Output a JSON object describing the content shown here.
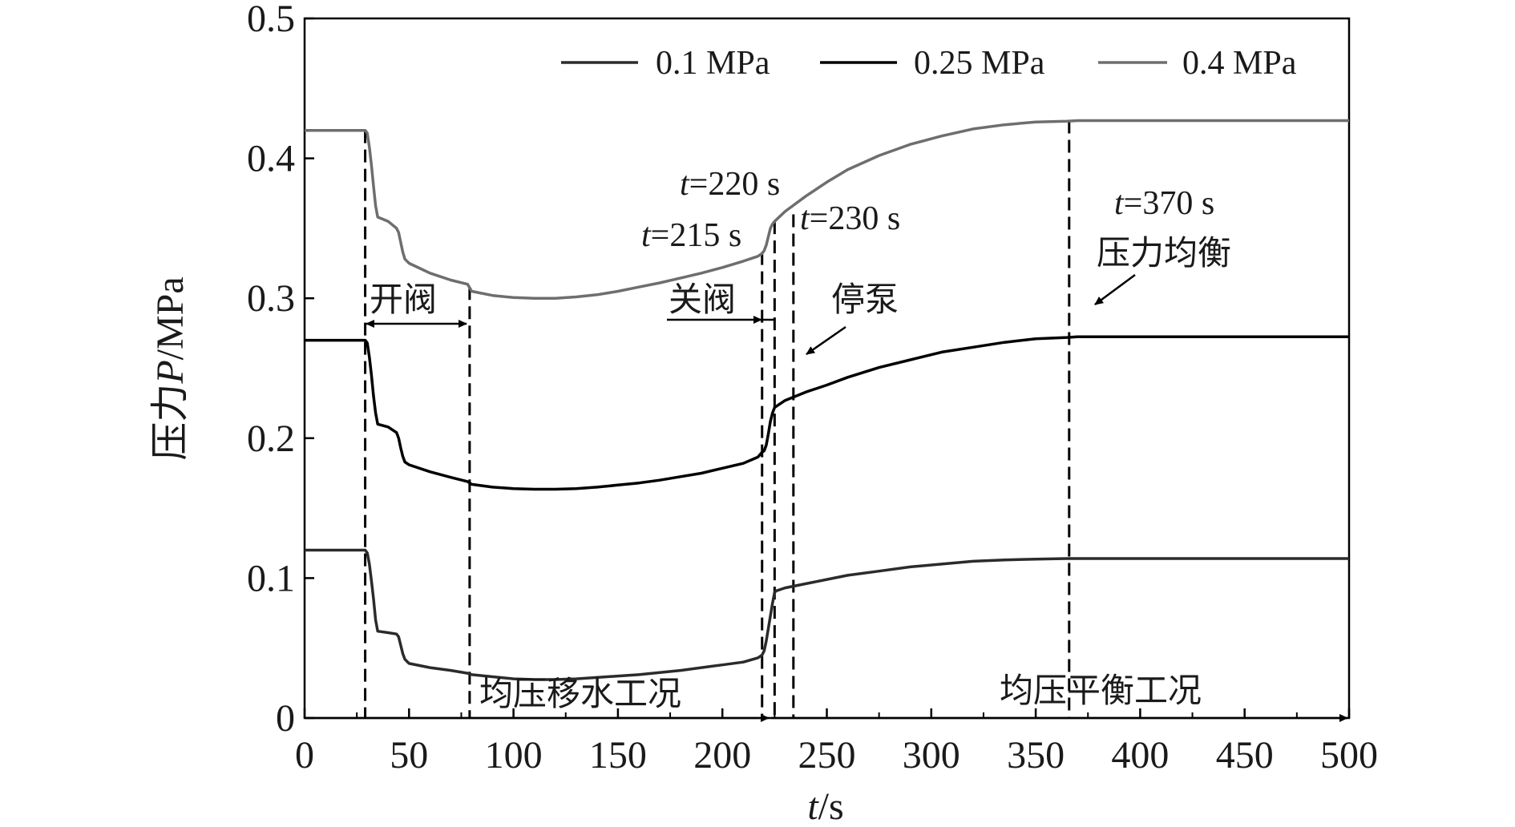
{
  "chart_data": {
    "type": "line",
    "title": "",
    "xlabel_italic": "t",
    "xlabel_unit": "/s",
    "ylabel_prefix": "压力",
    "ylabel_italic": "P",
    "ylabel_unit": "/MPa",
    "xlim": [
      0,
      500
    ],
    "ylim": [
      0,
      0.5
    ],
    "xticks": [
      "0",
      "50",
      "100",
      "150",
      "200",
      "250",
      "300",
      "350",
      "400",
      "450",
      "500"
    ],
    "yticks": [
      "0",
      "0.1",
      "0.2",
      "0.3",
      "0.4",
      "0.5"
    ],
    "grid": false,
    "legend_position": "top-right",
    "series": [
      {
        "name": "0.1 MPa",
        "color": "#2b2b2b",
        "points": [
          [
            0,
            0.12
          ],
          [
            28,
            0.12
          ],
          [
            29,
            0.12
          ],
          [
            30,
            0.118
          ],
          [
            31,
            0.11
          ],
          [
            32,
            0.098
          ],
          [
            33,
            0.085
          ],
          [
            34,
            0.07
          ],
          [
            35,
            0.062
          ],
          [
            40,
            0.061
          ],
          [
            44,
            0.06
          ],
          [
            45,
            0.058
          ],
          [
            46,
            0.052
          ],
          [
            47,
            0.046
          ],
          [
            48,
            0.042
          ],
          [
            50,
            0.039
          ],
          [
            60,
            0.036
          ],
          [
            70,
            0.034
          ],
          [
            78,
            0.032
          ],
          [
            80,
            0.031
          ],
          [
            90,
            0.0295
          ],
          [
            100,
            0.028
          ],
          [
            110,
            0.0275
          ],
          [
            120,
            0.0275
          ],
          [
            130,
            0.028
          ],
          [
            140,
            0.029
          ],
          [
            150,
            0.03
          ],
          [
            160,
            0.031
          ],
          [
            170,
            0.0325
          ],
          [
            180,
            0.034
          ],
          [
            190,
            0.036
          ],
          [
            200,
            0.038
          ],
          [
            210,
            0.04
          ],
          [
            217,
            0.043
          ],
          [
            219,
            0.045
          ],
          [
            220,
            0.048
          ],
          [
            221,
            0.055
          ],
          [
            222,
            0.064
          ],
          [
            223,
            0.073
          ],
          [
            224,
            0.082
          ],
          [
            225,
            0.09
          ],
          [
            226,
            0.091
          ],
          [
            230,
            0.093
          ],
          [
            240,
            0.096
          ],
          [
            250,
            0.099
          ],
          [
            260,
            0.102
          ],
          [
            275,
            0.105
          ],
          [
            290,
            0.108
          ],
          [
            305,
            0.11
          ],
          [
            320,
            0.112
          ],
          [
            335,
            0.113
          ],
          [
            350,
            0.1135
          ],
          [
            365,
            0.114
          ],
          [
            370,
            0.114
          ],
          [
            400,
            0.114
          ],
          [
            450,
            0.114
          ],
          [
            500,
            0.114
          ]
        ]
      },
      {
        "name": "0.25 MPa",
        "color": "#000000",
        "points": [
          [
            0,
            0.27
          ],
          [
            28,
            0.27
          ],
          [
            29,
            0.27
          ],
          [
            30,
            0.268
          ],
          [
            31,
            0.258
          ],
          [
            32,
            0.245
          ],
          [
            33,
            0.23
          ],
          [
            34,
            0.218
          ],
          [
            35,
            0.21
          ],
          [
            40,
            0.208
          ],
          [
            44,
            0.204
          ],
          [
            45,
            0.2
          ],
          [
            46,
            0.193
          ],
          [
            47,
            0.187
          ],
          [
            48,
            0.183
          ],
          [
            50,
            0.181
          ],
          [
            60,
            0.176
          ],
          [
            70,
            0.172
          ],
          [
            78,
            0.169
          ],
          [
            80,
            0.167
          ],
          [
            90,
            0.165
          ],
          [
            100,
            0.164
          ],
          [
            110,
            0.1635
          ],
          [
            120,
            0.1635
          ],
          [
            130,
            0.164
          ],
          [
            140,
            0.165
          ],
          [
            150,
            0.1665
          ],
          [
            160,
            0.168
          ],
          [
            170,
            0.17
          ],
          [
            180,
            0.1725
          ],
          [
            190,
            0.175
          ],
          [
            200,
            0.1785
          ],
          [
            210,
            0.182
          ],
          [
            217,
            0.1865
          ],
          [
            219,
            0.19
          ],
          [
            220,
            0.191
          ],
          [
            221,
            0.195
          ],
          [
            222,
            0.203
          ],
          [
            223,
            0.212
          ],
          [
            224,
            0.218
          ],
          [
            225,
            0.222
          ],
          [
            230,
            0.227
          ],
          [
            240,
            0.233
          ],
          [
            250,
            0.238
          ],
          [
            260,
            0.2435
          ],
          [
            275,
            0.2505
          ],
          [
            290,
            0.256
          ],
          [
            305,
            0.2615
          ],
          [
            320,
            0.265
          ],
          [
            335,
            0.2685
          ],
          [
            350,
            0.271
          ],
          [
            365,
            0.272
          ],
          [
            370,
            0.2725
          ],
          [
            400,
            0.2725
          ],
          [
            450,
            0.2725
          ],
          [
            500,
            0.2725
          ]
        ]
      },
      {
        "name": "0.4 MPa",
        "color": "#6e6e6e",
        "points": [
          [
            0,
            0.42
          ],
          [
            28,
            0.42
          ],
          [
            29,
            0.42
          ],
          [
            30,
            0.418
          ],
          [
            31,
            0.408
          ],
          [
            32,
            0.395
          ],
          [
            33,
            0.38
          ],
          [
            34,
            0.366
          ],
          [
            35,
            0.358
          ],
          [
            40,
            0.355
          ],
          [
            44,
            0.35
          ],
          [
            45,
            0.347
          ],
          [
            46,
            0.34
          ],
          [
            47,
            0.333
          ],
          [
            48,
            0.328
          ],
          [
            50,
            0.325
          ],
          [
            60,
            0.318
          ],
          [
            70,
            0.313
          ],
          [
            78,
            0.31
          ],
          [
            80,
            0.305
          ],
          [
            90,
            0.302
          ],
          [
            100,
            0.3005
          ],
          [
            110,
            0.3
          ],
          [
            120,
            0.3
          ],
          [
            130,
            0.301
          ],
          [
            140,
            0.3025
          ],
          [
            150,
            0.305
          ],
          [
            160,
            0.308
          ],
          [
            170,
            0.311
          ],
          [
            180,
            0.3145
          ],
          [
            190,
            0.318
          ],
          [
            200,
            0.322
          ],
          [
            210,
            0.3265
          ],
          [
            217,
            0.33
          ],
          [
            219,
            0.332
          ],
          [
            220,
            0.334
          ],
          [
            221,
            0.338
          ],
          [
            222,
            0.344
          ],
          [
            223,
            0.35
          ],
          [
            224,
            0.353
          ],
          [
            225,
            0.355
          ],
          [
            230,
            0.362
          ],
          [
            240,
            0.373
          ],
          [
            250,
            0.383
          ],
          [
            260,
            0.392
          ],
          [
            275,
            0.402
          ],
          [
            290,
            0.41
          ],
          [
            305,
            0.416
          ],
          [
            320,
            0.421
          ],
          [
            335,
            0.424
          ],
          [
            350,
            0.426
          ],
          [
            365,
            0.4265
          ],
          [
            370,
            0.427
          ],
          [
            400,
            0.427
          ],
          [
            450,
            0.427
          ],
          [
            500,
            0.427
          ]
        ]
      }
    ],
    "event_lines": [
      {
        "x": 29,
        "y_top": 0.42
      },
      {
        "x": 79,
        "y_top": 0.308
      },
      {
        "x": 219,
        "y_top": 0.333
      },
      {
        "x": 225,
        "y_top": 0.355
      },
      {
        "x": 234,
        "y_top": 0.36
      },
      {
        "x": 366,
        "y_top": 0.427
      }
    ],
    "annotations": {
      "t220": {
        "prefix": "t",
        "text": "=220 s"
      },
      "t215": {
        "prefix": "t",
        "text": "=215 s"
      },
      "t230": {
        "prefix": "t",
        "text": "=230 s"
      },
      "t370": {
        "prefix": "t",
        "text": "=370 s"
      },
      "open_valve": "开阀",
      "close_valve": "关阀",
      "stop_pump": "停泵",
      "pressure_balance": "压力均衡",
      "stage1": "均压移水工况",
      "stage2": "均压平衡工况"
    }
  }
}
